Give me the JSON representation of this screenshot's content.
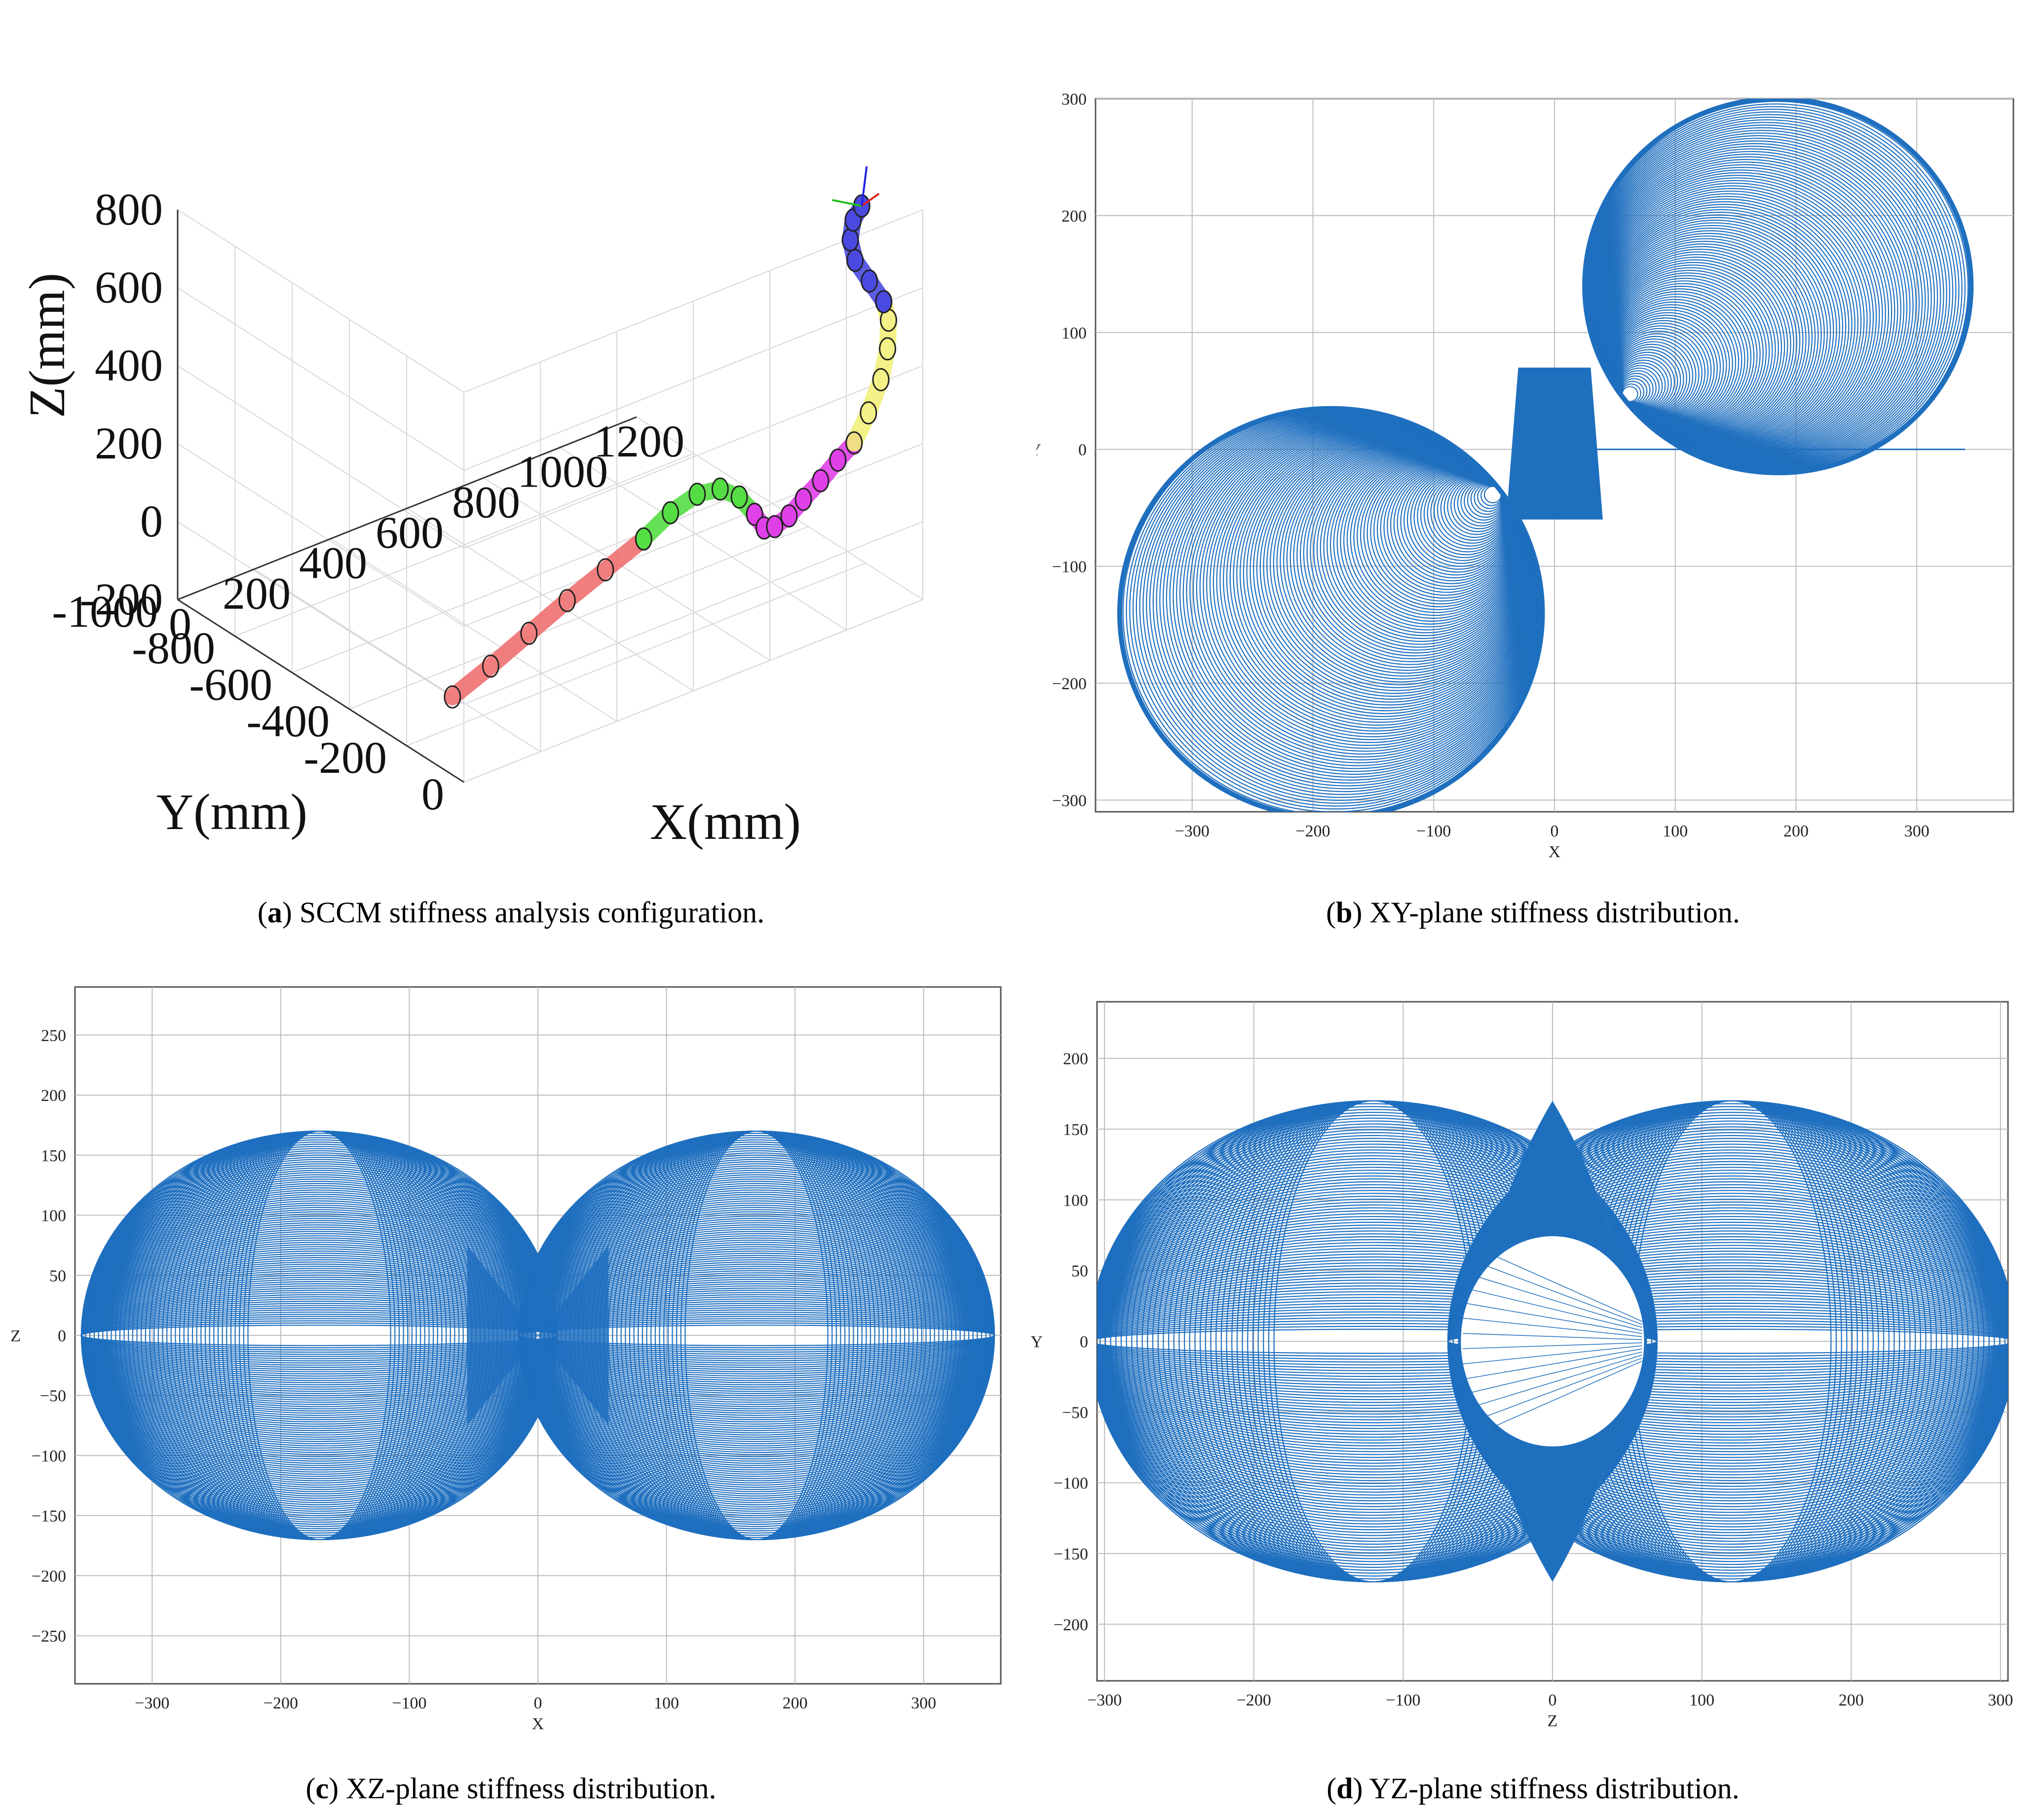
{
  "figure": {
    "captions": [
      {
        "id": "a",
        "label": "a",
        "text": ") SCCM stiffness analysis configuration."
      },
      {
        "id": "b",
        "label": "b",
        "text": ") XY-plane stiffness distribution."
      },
      {
        "id": "c",
        "label": "c",
        "text": ") XZ-plane stiffness distribution."
      },
      {
        "id": "d",
        "label": "d",
        "text": ") YZ-plane stiffness distribution."
      }
    ]
  },
  "colors": {
    "curve": "#1f6fbf",
    "grid": "#bdbdbd",
    "seg_red": "#f07070",
    "seg_green": "#55dd44",
    "seg_magenta": "#e040e8",
    "seg_yellow": "#f2f07a",
    "seg_blue": "#4a4ae0"
  },
  "chart_data": [
    {
      "id": "a",
      "type": "scatter",
      "title": "SCCM stiffness analysis configuration",
      "xlabel": "X(mm)",
      "ylabel": "Y(mm)",
      "zlabel": "Z(mm)",
      "xticks": [
        "0",
        "200",
        "400",
        "600",
        "800",
        "1000",
        "1200"
      ],
      "yticks": [
        "0",
        "-200",
        "-400",
        "-600",
        "-800",
        "-1000"
      ],
      "zticks": [
        "800",
        "600",
        "400",
        "200",
        "0",
        "-200"
      ],
      "xlim": [
        0,
        1200
      ],
      "ylim": [
        -1000,
        0
      ],
      "zlim": [
        -200,
        800
      ],
      "segments": [
        {
          "name": "red",
          "color": "#f07070",
          "points": [
            [
              0,
              -40,
              0
            ],
            [
              100,
              -40,
              40
            ],
            [
              200,
              -40,
              85
            ],
            [
              300,
              -40,
              130
            ],
            [
              400,
              -40,
              170
            ],
            [
              500,
              -40,
              210
            ]
          ]
        },
        {
          "name": "green",
          "color": "#55dd44",
          "points": [
            [
              500,
              -40,
              210
            ],
            [
              570,
              -40,
              250
            ],
            [
              640,
              -40,
              270
            ],
            [
              700,
              -40,
              260
            ],
            [
              750,
              -40,
              220
            ],
            [
              790,
              -40,
              160
            ]
          ]
        },
        {
          "name": "magenta",
          "color": "#e040e8",
          "points": [
            [
              790,
              -40,
              160
            ],
            [
              830,
              -60,
              100
            ],
            [
              880,
              -90,
              70
            ],
            [
              940,
              -120,
              60
            ],
            [
              1000,
              -150,
              65
            ],
            [
              1060,
              -170,
              80
            ],
            [
              1120,
              -190,
              100
            ],
            [
              1170,
              -200,
              120
            ]
          ]
        },
        {
          "name": "yellow",
          "color": "#f2f07a",
          "points": [
            [
              1170,
              -200,
              120
            ],
            [
              1200,
              -190,
              190
            ],
            [
              1225,
              -180,
              270
            ],
            [
              1235,
              -170,
              350
            ],
            [
              1230,
              -160,
              430
            ],
            [
              1210,
              -150,
              490
            ]
          ]
        },
        {
          "name": "blue",
          "color": "#4a4ae0",
          "points": [
            [
              1210,
              -150,
              490
            ],
            [
              1180,
              -160,
              550
            ],
            [
              1150,
              -170,
              610
            ],
            [
              1145,
              -180,
              660
            ],
            [
              1160,
              -190,
              700
            ],
            [
              1190,
              -200,
              720
            ]
          ]
        }
      ],
      "end_frame": {
        "x_axis": "red",
        "y_axis": "green",
        "z_axis": "blue"
      }
    },
    {
      "id": "b",
      "type": "line",
      "title": "XY-plane stiffness distribution",
      "xlabel": "X",
      "ylabel": "Y",
      "xlim": [
        -380,
        380
      ],
      "ylim": [
        -310,
        300
      ],
      "xticks": [
        -300,
        -200,
        -100,
        0,
        100,
        200,
        300
      ],
      "yticks": [
        300,
        200,
        100,
        0,
        -100,
        -200,
        -300
      ],
      "series": [
        {
          "name": "lobe-upper-right",
          "center": [
            185,
            140
          ],
          "radius_x": 160,
          "radius_y": 160,
          "tilt_deg": 0
        },
        {
          "name": "lobe-lower-left",
          "center": [
            -185,
            -140
          ],
          "radius_x": 175,
          "radius_y": 175,
          "tilt_deg": 0
        }
      ]
    },
    {
      "id": "c",
      "type": "line",
      "title": "XZ-plane stiffness distribution",
      "xlabel": "X",
      "ylabel": "Z",
      "xlim": [
        -360,
        360
      ],
      "ylim": [
        -290,
        290
      ],
      "xticks": [
        -300,
        -200,
        -100,
        0,
        100,
        200,
        300
      ],
      "yticks": [
        250,
        200,
        150,
        100,
        50,
        0,
        -50,
        -100,
        -150,
        -200,
        -250
      ],
      "series": [
        {
          "name": "lobe-left",
          "center": [
            -170,
            0
          ],
          "radius_x": 185,
          "radius_y": 170
        },
        {
          "name": "lobe-right",
          "center": [
            170,
            0
          ],
          "radius_x": 185,
          "radius_y": 170
        }
      ]
    },
    {
      "id": "d",
      "type": "line",
      "title": "YZ-plane stiffness distribution",
      "xlabel": "Z",
      "ylabel": "Y",
      "xlim": [
        -305,
        305
      ],
      "ylim": [
        -240,
        240
      ],
      "xticks": [
        -300,
        -200,
        -100,
        0,
        100,
        200,
        300
      ],
      "yticks": [
        200,
        150,
        100,
        50,
        0,
        -50,
        -100,
        -150,
        -200
      ],
      "series": [
        {
          "name": "lobe-left",
          "center": [
            -120,
            0
          ],
          "radius_x": 190,
          "radius_y": 170
        },
        {
          "name": "lobe-right",
          "center": [
            120,
            0
          ],
          "radius_x": 190,
          "radius_y": 170
        },
        {
          "name": "inner-ellipse",
          "center": [
            0,
            0
          ],
          "radius_x": 62,
          "radius_y": 75
        }
      ]
    }
  ]
}
